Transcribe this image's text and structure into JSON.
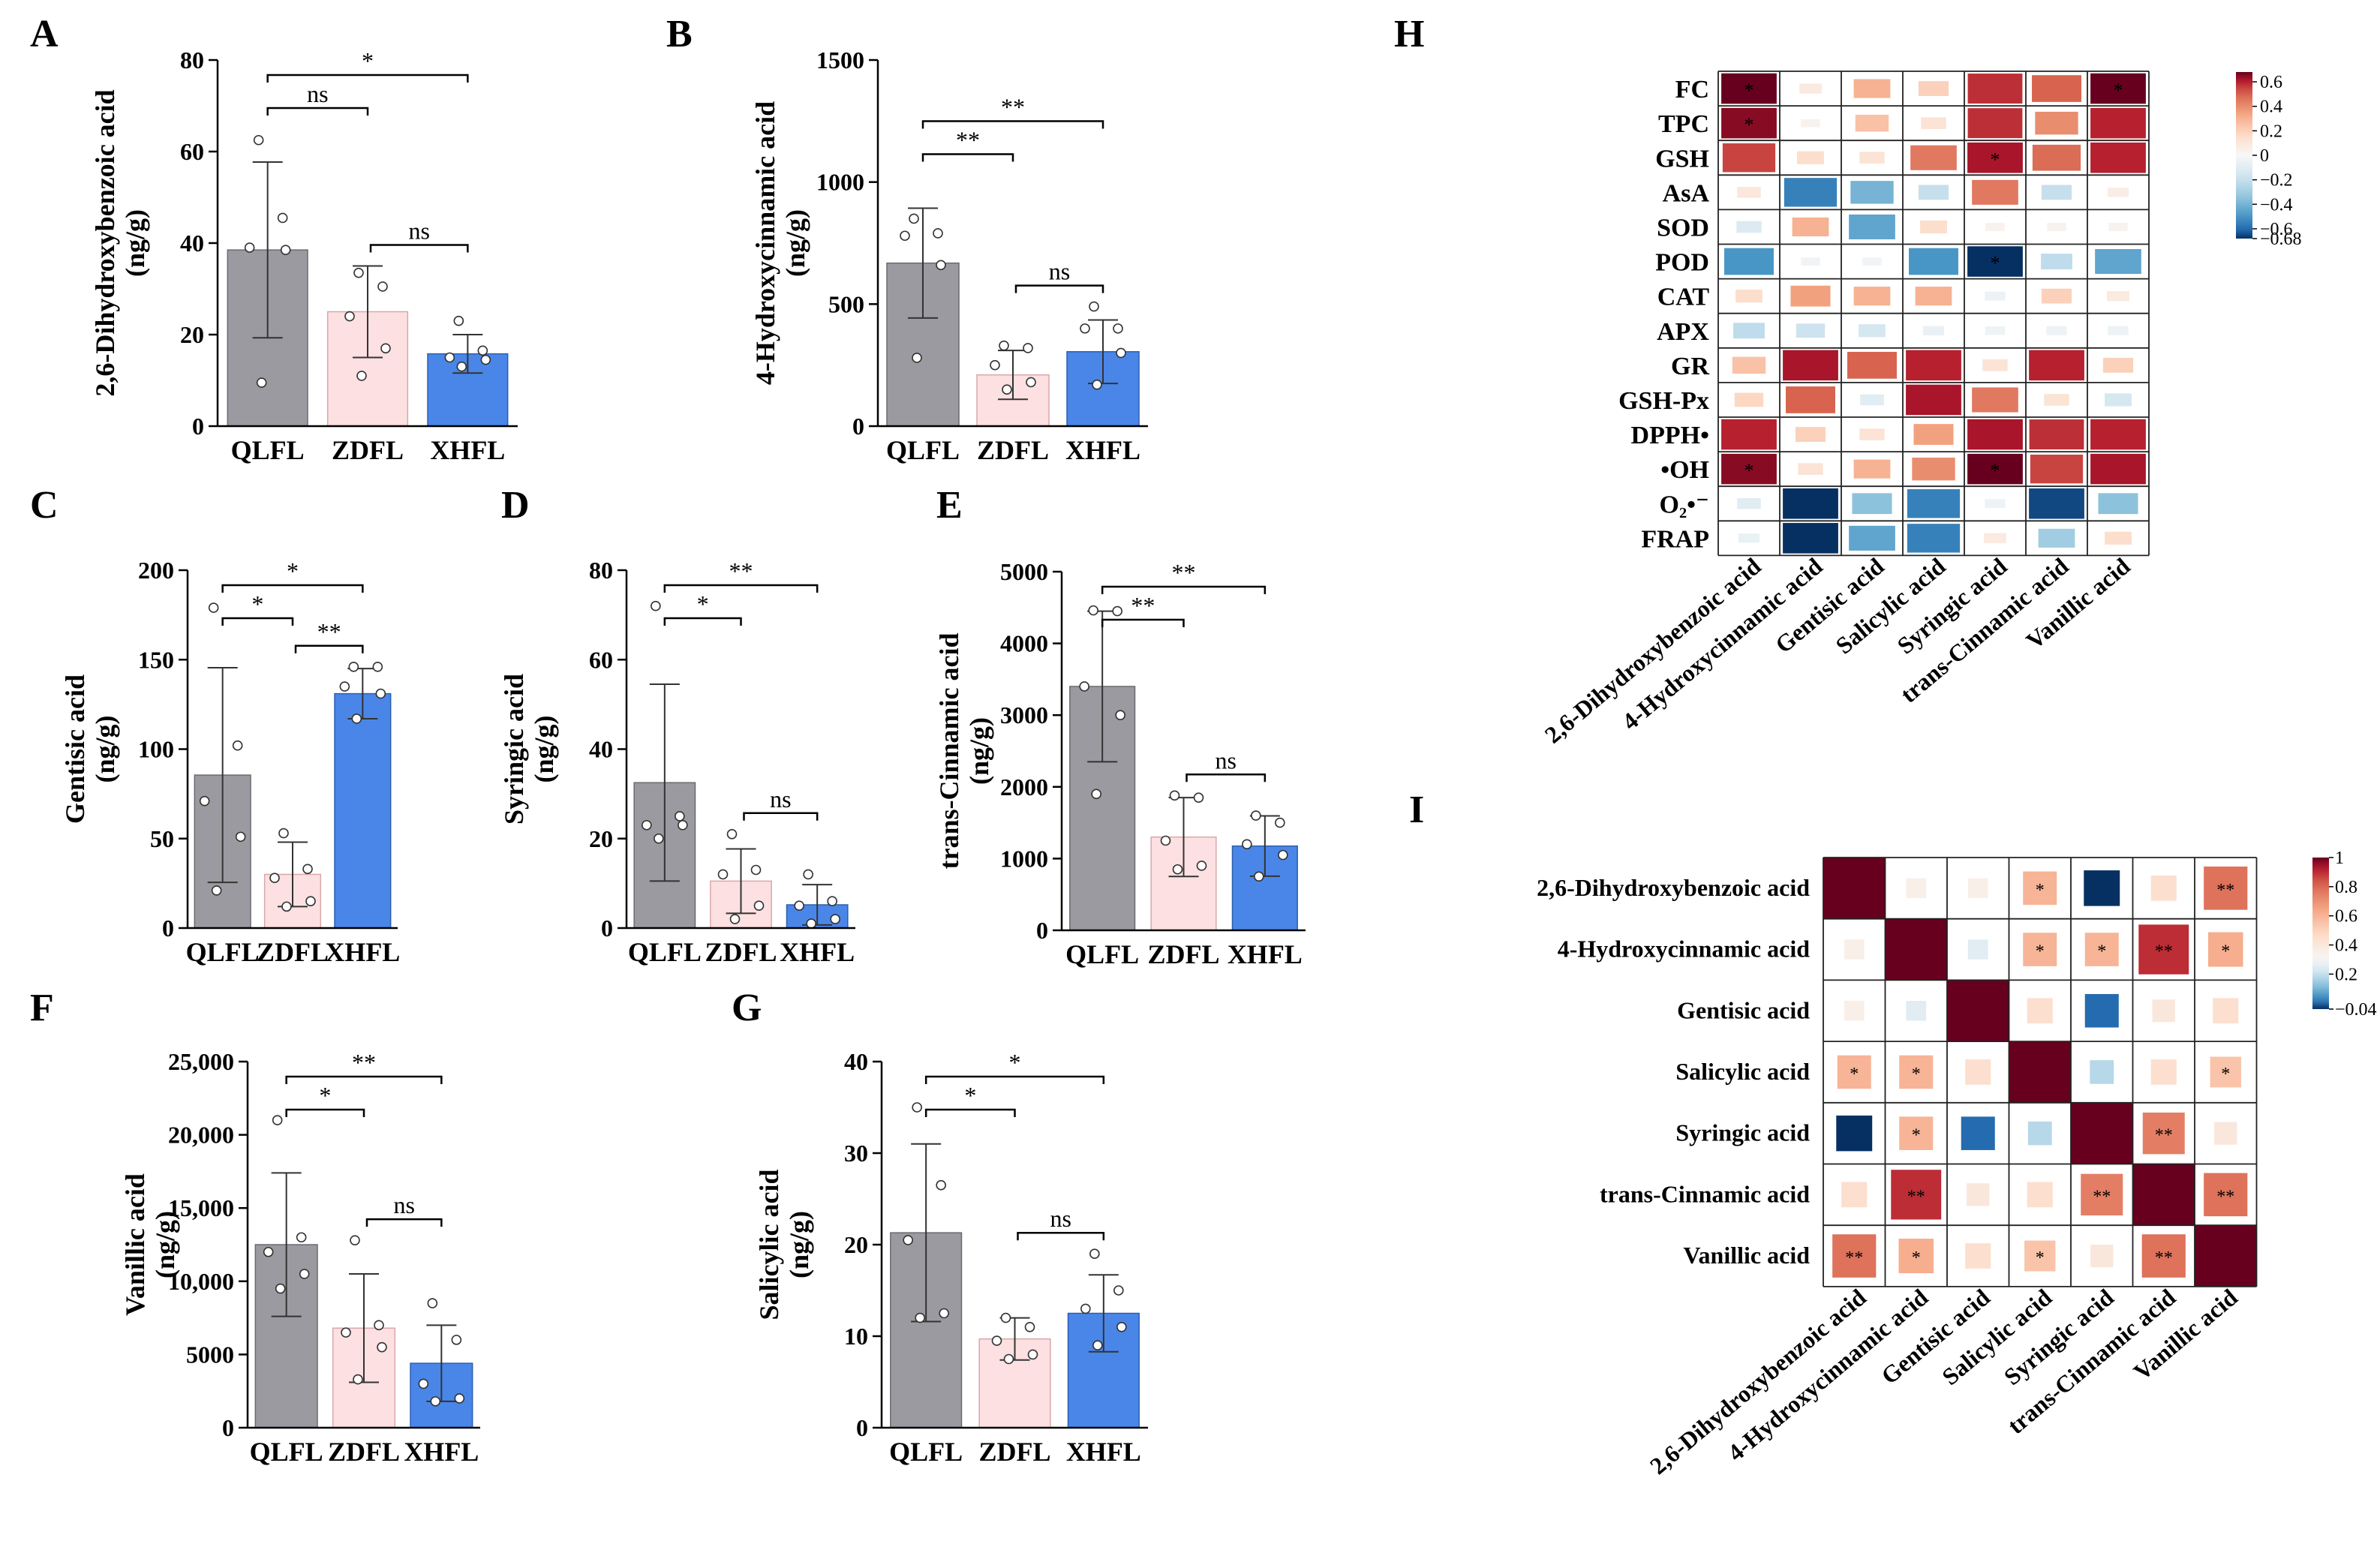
{
  "colors": {
    "QLFL": "#9a9aa0",
    "ZDFL": "#fde0e1",
    "XHFL": "#4a86e8",
    "corr_pos": "#67001f",
    "corr_neg": "#053061"
  },
  "chart_data": [
    {
      "id": "A",
      "type": "bar",
      "panel_label": "A",
      "ylabel": [
        "2,6-Dihydroxybenzoic acid",
        "(ng/g)"
      ],
      "categories": [
        "QLFL",
        "ZDFL",
        "XHFL"
      ],
      "values": [
        38.5,
        25,
        15.8
      ],
      "sd": [
        19.2,
        10,
        4.2
      ],
      "ylim": [
        0,
        80
      ],
      "ticks": [
        0,
        20,
        40,
        60,
        80
      ],
      "tick_labels": [
        "0",
        "20",
        "40",
        "60",
        "80"
      ],
      "points": [
        [
          62.5,
          45.5,
          39,
          38.5,
          9.5
        ],
        [
          33.5,
          30.5,
          24,
          17,
          11
        ],
        [
          23,
          16.5,
          15,
          14.5,
          13
        ]
      ],
      "sig": [
        {
          "from": 0,
          "to": 1,
          "level": 1,
          "label": "ns"
        },
        {
          "from": 1,
          "to": 2,
          "level": 0,
          "label": "ns"
        },
        {
          "from": 0,
          "to": 2,
          "level": 2,
          "label": "*"
        }
      ]
    },
    {
      "id": "B",
      "type": "bar",
      "panel_label": "B",
      "ylabel": [
        "4-Hydroxycinnamic acid",
        "(ng/g)"
      ],
      "categories": [
        "QLFL",
        "ZDFL",
        "XHFL"
      ],
      "values": [
        668,
        210,
        305
      ],
      "sd": [
        225,
        100,
        130
      ],
      "ylim": [
        0,
        1500
      ],
      "ticks": [
        0,
        500,
        1000,
        1500
      ],
      "tick_labels": [
        "0",
        "500",
        "1000",
        "1500"
      ],
      "points": [
        [
          850,
          790,
          780,
          660,
          280
        ],
        [
          330,
          320,
          250,
          180,
          150
        ],
        [
          490,
          400,
          400,
          300,
          170
        ]
      ],
      "sig": [
        {
          "from": 0,
          "to": 1,
          "level": 1,
          "label": "**"
        },
        {
          "from": 1,
          "to": 2,
          "level": 0,
          "label": "ns"
        },
        {
          "from": 0,
          "to": 2,
          "level": 2,
          "label": "**"
        }
      ]
    },
    {
      "id": "C",
      "type": "bar",
      "panel_label": "C",
      "ylabel": [
        "Gentisic acid",
        "(ng/g)"
      ],
      "categories": [
        "QLFL",
        "ZDFL",
        "XHFL"
      ],
      "values": [
        85.5,
        30,
        131
      ],
      "sd": [
        60,
        18,
        14
      ],
      "ylim": [
        0,
        200
      ],
      "ticks": [
        0,
        50,
        100,
        150,
        200
      ],
      "tick_labels": [
        "0",
        "50",
        "100",
        "150",
        "200"
      ],
      "points": [
        [
          179,
          102,
          71,
          51,
          21
        ],
        [
          53,
          33,
          28,
          15,
          12
        ],
        [
          146,
          146,
          135,
          131,
          117
        ]
      ],
      "sig": [
        {
          "from": 0,
          "to": 1,
          "level": 1,
          "label": "*"
        },
        {
          "from": 1,
          "to": 2,
          "level": 0,
          "label": "**"
        },
        {
          "from": 0,
          "to": 2,
          "level": 2,
          "label": "*"
        }
      ]
    },
    {
      "id": "D",
      "type": "bar",
      "panel_label": "D",
      "ylabel": [
        "Syringic acid",
        "(ng/g)"
      ],
      "categories": [
        "QLFL",
        "ZDFL",
        "XHFL"
      ],
      "values": [
        32.5,
        10.5,
        5.2
      ],
      "sd": [
        22,
        7.2,
        4.5
      ],
      "ylim": [
        0,
        80
      ],
      "ticks": [
        0,
        20,
        40,
        60,
        80
      ],
      "tick_labels": [
        "0",
        "20",
        "40",
        "60",
        "80"
      ],
      "points": [
        [
          72,
          25,
          23,
          23,
          20
        ],
        [
          21,
          13,
          12,
          5,
          2
        ],
        [
          12,
          6,
          5,
          2,
          1
        ]
      ],
      "sig": [
        {
          "from": 0,
          "to": 1,
          "level": 1,
          "label": "*"
        },
        {
          "from": 1,
          "to": 2,
          "level": 0,
          "label": "ns"
        },
        {
          "from": 0,
          "to": 2,
          "level": 2,
          "label": "**"
        }
      ]
    },
    {
      "id": "E",
      "type": "bar",
      "panel_label": "E",
      "ylabel": [
        "trans-Cinnamic acid",
        "(ng/g)"
      ],
      "categories": [
        "QLFL",
        "ZDFL",
        "XHFL"
      ],
      "values": [
        3400,
        1300,
        1175
      ],
      "sd": [
        1050,
        550,
        420
      ],
      "ylim": [
        0,
        5000
      ],
      "ticks": [
        0,
        1000,
        2000,
        3000,
        4000,
        5000
      ],
      "tick_labels": [
        "0",
        "1000",
        "2000",
        "3000",
        "4000",
        "5000"
      ],
      "points": [
        [
          4460,
          4450,
          3400,
          3000,
          1900
        ],
        [
          1880,
          1850,
          1250,
          900,
          850
        ],
        [
          1600,
          1500,
          1200,
          1050,
          750
        ]
      ],
      "sig": [
        {
          "from": 0,
          "to": 1,
          "level": 1,
          "label": "**"
        },
        {
          "from": 1,
          "to": 2,
          "level": 0,
          "label": "ns"
        },
        {
          "from": 0,
          "to": 2,
          "level": 2,
          "label": "**"
        }
      ]
    },
    {
      "id": "F",
      "type": "bar",
      "panel_label": "F",
      "ylabel": [
        "Vanillic acid",
        "(ng/g)"
      ],
      "categories": [
        "QLFL",
        "ZDFL",
        "XHFL"
      ],
      "values": [
        12500,
        6800,
        4400
      ],
      "sd": [
        4900,
        3700,
        2600
      ],
      "ylim": [
        0,
        25000
      ],
      "ticks": [
        0,
        5000,
        10000,
        15000,
        20000,
        25000
      ],
      "tick_labels": [
        "0",
        "5000",
        "10,000",
        "15,000",
        "20,000",
        "25,000"
      ],
      "points": [
        [
          21000,
          13000,
          12000,
          10500,
          9500
        ],
        [
          12800,
          7000,
          6500,
          5500,
          3300
        ],
        [
          8500,
          6000,
          3000,
          2000,
          1800
        ]
      ],
      "sig": [
        {
          "from": 0,
          "to": 1,
          "level": 1,
          "label": "*"
        },
        {
          "from": 1,
          "to": 2,
          "level": 0,
          "label": "ns"
        },
        {
          "from": 0,
          "to": 2,
          "level": 2,
          "label": "**"
        }
      ]
    },
    {
      "id": "G",
      "type": "bar",
      "panel_label": "G",
      "ylabel": [
        "Salicylic acid",
        "(ng/g)"
      ],
      "categories": [
        "QLFL",
        "ZDFL",
        "XHFL"
      ],
      "values": [
        21.3,
        9.7,
        12.5
      ],
      "sd": [
        9.7,
        2.3,
        4.2
      ],
      "ylim": [
        0,
        40
      ],
      "ticks": [
        0,
        10,
        20,
        30,
        40
      ],
      "tick_labels": [
        "0",
        "10",
        "20",
        "30",
        "40"
      ],
      "points": [
        [
          35,
          26.5,
          20.5,
          12.5,
          12
        ],
        [
          12,
          11,
          9.5,
          8,
          7.5
        ],
        [
          19,
          15,
          13,
          11,
          9
        ]
      ],
      "sig": [
        {
          "from": 0,
          "to": 1,
          "level": 1,
          "label": "*"
        },
        {
          "from": 1,
          "to": 2,
          "level": 0,
          "label": "ns"
        },
        {
          "from": 0,
          "to": 2,
          "level": 2,
          "label": "*"
        }
      ]
    },
    {
      "id": "H",
      "type": "heatmap",
      "panel_label": "H",
      "rows": [
        "FC",
        "TPC",
        "GSH",
        "AsA",
        "SOD",
        "POD",
        "CAT",
        "APX",
        "GR",
        "GSH-Px",
        "DPPH•",
        "•OH",
        "O₂•⁻",
        "FRAP"
      ],
      "cols": [
        "2,6-Dihydroxybenzoic acid",
        "4-Hydroxycinnamic acid",
        "Gentisic acid",
        "Salicylic acid",
        "Syringic acid",
        "trans-Cinnamic acid",
        "Vanillic acid"
      ],
      "values": [
        [
          0.68,
          0.08,
          0.3,
          0.2,
          0.58,
          0.5,
          0.7
        ],
        [
          0.65,
          0.03,
          0.25,
          0.12,
          0.58,
          0.4,
          0.6
        ],
        [
          0.55,
          0.15,
          0.12,
          0.45,
          0.62,
          0.48,
          0.6
        ],
        [
          0.1,
          -0.55,
          -0.4,
          -0.2,
          0.45,
          -0.2,
          0.06
        ],
        [
          -0.12,
          0.3,
          -0.45,
          0.15,
          0.03,
          0.03,
          0.03
        ],
        [
          -0.5,
          -0.03,
          -0.03,
          -0.5,
          -0.68,
          -0.22,
          -0.45
        ],
        [
          0.15,
          0.35,
          0.3,
          0.3,
          -0.05,
          0.2,
          0.08
        ],
        [
          -0.22,
          -0.18,
          -0.15,
          -0.06,
          -0.04,
          -0.05,
          -0.05
        ],
        [
          0.25,
          0.62,
          0.5,
          0.6,
          0.12,
          0.6,
          0.2
        ],
        [
          0.18,
          0.5,
          -0.1,
          0.62,
          0.45,
          0.12,
          -0.15
        ],
        [
          0.6,
          0.2,
          0.12,
          0.35,
          0.62,
          0.58,
          0.6
        ],
        [
          0.65,
          0.12,
          0.3,
          0.4,
          0.75,
          0.55,
          0.62
        ],
        [
          -0.1,
          -0.68,
          -0.35,
          -0.55,
          -0.05,
          -0.65,
          -0.35
        ],
        [
          -0.06,
          -0.68,
          -0.45,
          -0.55,
          0.08,
          -0.3,
          0.15
        ]
      ],
      "stars": [
        [
          0,
          0,
          "*"
        ],
        [
          0,
          6,
          "*"
        ],
        [
          1,
          0,
          "*"
        ],
        [
          2,
          4,
          "*"
        ],
        [
          5,
          4,
          "*"
        ],
        [
          11,
          0,
          "*"
        ],
        [
          11,
          4,
          "*"
        ]
      ],
      "vmin": -0.68,
      "vmax": 0.68,
      "colorbar_ticks": [
        0.6,
        0.4,
        0.2,
        0,
        -0.2,
        -0.4,
        -0.6,
        -0.68
      ],
      "colorbar_labels": [
        "0.6",
        "0.4",
        "0.2",
        "0",
        "−0.2",
        "−0.4",
        "−0.6",
        "−0.68"
      ]
    },
    {
      "id": "I",
      "type": "heatmap",
      "panel_label": "I",
      "labels": [
        "2,6-Dihydroxybenzoic acid",
        "4-Hydroxycinnamic acid",
        "Gentisic acid",
        "Salicylic acid",
        "Syringic acid",
        "trans-Cinnamic acid",
        "Vanillic acid"
      ],
      "values": [
        [
          1,
          0.35,
          0.35,
          0.6,
          -0.04,
          0.45,
          0.78
        ],
        [
          0.35,
          1,
          0.25,
          0.6,
          0.6,
          0.9,
          0.62
        ],
        [
          0.35,
          0.25,
          1,
          0.45,
          0.0,
          0.4,
          0.45
        ],
        [
          0.6,
          0.6,
          0.45,
          1,
          0.18,
          0.45,
          0.55
        ],
        [
          -0.04,
          0.6,
          0.0,
          0.18,
          1,
          0.75,
          0.4
        ],
        [
          0.45,
          0.9,
          0.4,
          0.45,
          0.75,
          1,
          0.78
        ],
        [
          0.78,
          0.62,
          0.45,
          0.55,
          0.4,
          0.78,
          1
        ]
      ],
      "stars": [
        [
          0,
          3,
          "*"
        ],
        [
          0,
          6,
          "**"
        ],
        [
          1,
          3,
          "*"
        ],
        [
          1,
          4,
          "*"
        ],
        [
          1,
          5,
          "**"
        ],
        [
          1,
          6,
          "*"
        ],
        [
          3,
          0,
          "*"
        ],
        [
          3,
          1,
          "*"
        ],
        [
          3,
          6,
          "*"
        ],
        [
          4,
          1,
          "*"
        ],
        [
          4,
          5,
          "**"
        ],
        [
          5,
          1,
          "**"
        ],
        [
          5,
          4,
          "**"
        ],
        [
          5,
          6,
          "**"
        ],
        [
          6,
          0,
          "**"
        ],
        [
          6,
          1,
          "*"
        ],
        [
          6,
          3,
          "*"
        ],
        [
          6,
          5,
          "**"
        ]
      ],
      "vmin": -0.04,
      "vmax": 1,
      "colorbar_ticks": [
        1,
        0.8,
        0.6,
        0.4,
        0.2,
        -0.04
      ],
      "colorbar_labels": [
        "1",
        "0.8",
        "0.6",
        "0.4",
        "0.2",
        "−0.04"
      ]
    }
  ]
}
